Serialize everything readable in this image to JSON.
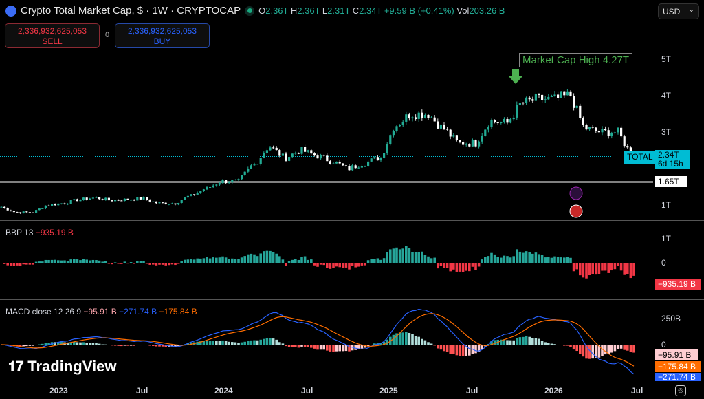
{
  "header": {
    "title": "Crypto Total Market Cap, $ · 1W · CRYPTOCAP",
    "open_label": "O",
    "open": "2.36T",
    "high_label": "H",
    "high": "2.36T",
    "low_label": "L",
    "low": "2.31T",
    "close_label": "C",
    "close": "2.34T",
    "change": "+9.59 B (+0.41%)",
    "vol_label": "Vol",
    "vol": "203.26 B"
  },
  "trade": {
    "sell_price": "2,336,932,625,053",
    "sell_label": "SELL",
    "spread": "0",
    "buy_price": "2,336,932,625,053",
    "buy_label": "BUY"
  },
  "currency": "USD",
  "annotation": "Market Cap High 4.27T",
  "price_axis": [
    "5T",
    "4T",
    "3T",
    "1T"
  ],
  "total_tag": "TOTAL",
  "last_price": "2.34T",
  "countdown": "6d 15h",
  "level_line": "1.65T",
  "bbp": {
    "label": "BBP 13",
    "value": "−935.19 B",
    "axis": [
      "1T",
      "0"
    ]
  },
  "macd": {
    "label": "MACD close 12 26 9",
    "hist": "−95.91 B",
    "macd": "−271.74 B",
    "signal": "−175.84 B",
    "axis": [
      "250B",
      "0"
    ]
  },
  "time_axis": [
    "2023",
    "Jul",
    "2024",
    "Jul",
    "2025",
    "Jul",
    "2026",
    "Jul"
  ],
  "brand": "TradingView",
  "colors": {
    "up": "#22ab94",
    "down": "#f23645",
    "accent": "#00bcd4",
    "macd": "#2962ff",
    "signal": "#ff6d00"
  },
  "chart_data": {
    "type": "candlestick",
    "unit": "T",
    "interval": "1W",
    "monthly_closes": [
      [
        "2022-10",
        0.95
      ],
      [
        "2022-11",
        0.8
      ],
      [
        "2022-12",
        0.8
      ],
      [
        "2023-01",
        1.0
      ],
      [
        "2023-02",
        1.05
      ],
      [
        "2023-03",
        1.15
      ],
      [
        "2023-04",
        1.2
      ],
      [
        "2023-05",
        1.13
      ],
      [
        "2023-06",
        1.15
      ],
      [
        "2023-07",
        1.18
      ],
      [
        "2023-08",
        1.05
      ],
      [
        "2023-09",
        1.05
      ],
      [
        "2023-10",
        1.25
      ],
      [
        "2023-11",
        1.45
      ],
      [
        "2023-12",
        1.65
      ],
      [
        "2024-01",
        1.65
      ],
      [
        "2024-02",
        2.1
      ],
      [
        "2024-03",
        2.6
      ],
      [
        "2024-04",
        2.3
      ],
      [
        "2024-05",
        2.5
      ],
      [
        "2024-06",
        2.35
      ],
      [
        "2024-07",
        2.2
      ],
      [
        "2024-08",
        2.0
      ],
      [
        "2024-09",
        2.15
      ],
      [
        "2024-10",
        2.3
      ],
      [
        "2024-11",
        3.2
      ],
      [
        "2024-12",
        3.5
      ],
      [
        "2025-01",
        3.5
      ],
      [
        "2025-02",
        3.1
      ],
      [
        "2025-03",
        2.7
      ],
      [
        "2025-04",
        2.7
      ],
      [
        "2025-05",
        3.3
      ],
      [
        "2025-06",
        3.25
      ],
      [
        "2025-07",
        3.8
      ],
      [
        "2025-08",
        3.9
      ],
      [
        "2025-09",
        3.9
      ],
      [
        "2025-10",
        4.0
      ],
      [
        "2025-11",
        3.1
      ],
      [
        "2025-12",
        3.0
      ],
      [
        "2026-01",
        3.0
      ],
      [
        "2026-02",
        2.34
      ]
    ],
    "ylim": [
      0.6,
      5.3
    ]
  }
}
